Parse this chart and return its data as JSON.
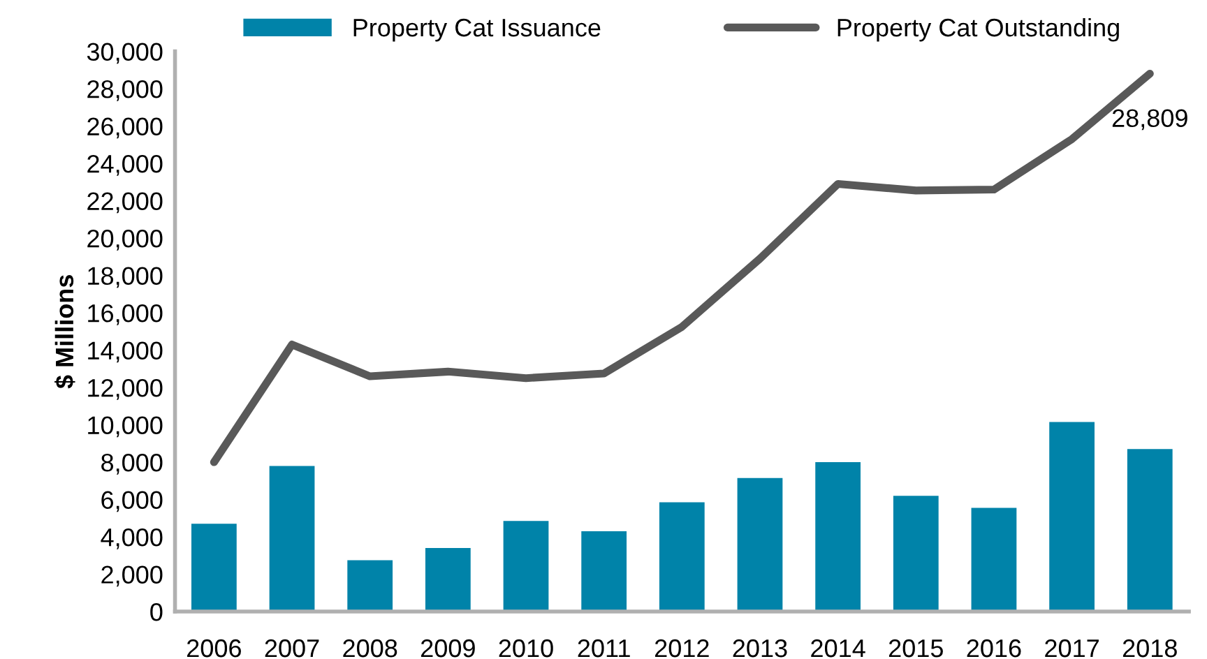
{
  "chart_data": {
    "type": "bar",
    "ylabel": "$ Millions",
    "categories": [
      "2006",
      "2007",
      "2008",
      "2009",
      "2010",
      "2011",
      "2012",
      "2013",
      "2014",
      "2015",
      "2016",
      "2017",
      "2018"
    ],
    "series": [
      {
        "name": "Property Cat Issuance",
        "color": "#0083a9",
        "values": [
          4700,
          7800,
          2750,
          3400,
          4850,
          4300,
          5850,
          7150,
          8000,
          6200,
          5550,
          10150,
          8700
        ]
      },
      {
        "name": "Property Cat Outstanding",
        "type": "line",
        "color": "#595959",
        "values": [
          8000,
          14300,
          12600,
          12850,
          12500,
          12750,
          15250,
          18900,
          22900,
          22550,
          22600,
          25300,
          28809
        ],
        "value_labels": [
          null,
          null,
          null,
          null,
          null,
          null,
          null,
          null,
          null,
          null,
          null,
          null,
          "28,809"
        ]
      }
    ],
    "ylim": [
      0,
      30000
    ],
    "yticks": [
      {
        "value": 0,
        "label": "0"
      },
      {
        "value": 2000,
        "label": "2,000"
      },
      {
        "value": 4000,
        "label": "4,000"
      },
      {
        "value": 6000,
        "label": "6,000"
      },
      {
        "value": 8000,
        "label": "8,000"
      },
      {
        "value": 10000,
        "label": "10,000"
      },
      {
        "value": 12000,
        "label": "12,000"
      },
      {
        "value": 14000,
        "label": "14,000"
      },
      {
        "value": 16000,
        "label": "16,000"
      },
      {
        "value": 18000,
        "label": "18,000"
      },
      {
        "value": 20000,
        "label": "20,000"
      },
      {
        "value": 22000,
        "label": "22,000"
      },
      {
        "value": 24000,
        "label": "24,000"
      },
      {
        "value": 26000,
        "label": "26,000"
      },
      {
        "value": 28000,
        "label": "28,000"
      },
      {
        "value": 30000,
        "label": "30,000"
      }
    ],
    "grid": false,
    "legend": "top"
  }
}
